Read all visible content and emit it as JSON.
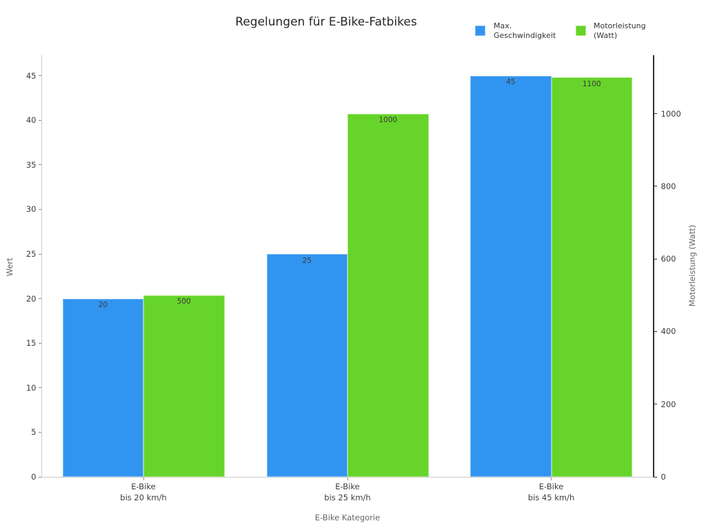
{
  "chart_data": {
    "type": "bar",
    "title": "Regelungen für E-Bike-Fatbikes",
    "categories": [
      "E-Bike\nbis 20 km/h",
      "E-Bike\nbis 25 km/h",
      "E-Bike\nbis 45 km/h"
    ],
    "series": [
      {
        "name": "Max.\nGeschwindigkeit",
        "axis": "left",
        "color": "#3194f0",
        "edge_color": "#85c4f8",
        "values": [
          20,
          25,
          45
        ],
        "value_labels": [
          "20",
          "25",
          "45"
        ]
      },
      {
        "name": "Motorleistung\n(Watt)",
        "axis": "right",
        "color": "#66d42a",
        "edge_color": "#a9ea80",
        "values": [
          500,
          1000,
          1100
        ],
        "value_labels": [
          "500",
          "1000",
          "1100"
        ]
      }
    ],
    "xlabel": "E-Bike Kategorie",
    "left_axis": {
      "label": "Wert",
      "ticks": [
        0,
        5,
        10,
        15,
        20,
        25,
        30,
        35,
        40,
        45
      ],
      "range": [
        0,
        47.3
      ]
    },
    "right_axis": {
      "label": "Motorleistung (Watt)",
      "ticks": [
        0,
        200,
        400,
        600,
        800,
        1000
      ],
      "range": [
        0,
        1161
      ]
    },
    "grid": false,
    "legend_position": "top-right",
    "background": "#ffffff"
  }
}
